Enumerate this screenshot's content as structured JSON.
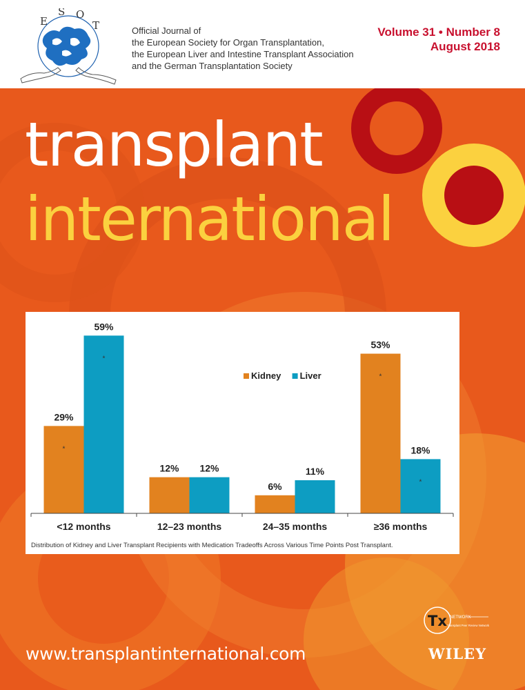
{
  "header": {
    "logo_text": "E S O T",
    "description_lines": [
      "Official Journal of",
      "the European Society for Organ Transplantation,",
      "the European Liver and Intestine Transplant Association",
      "and the German Transplantation Society"
    ],
    "volume_line": "Volume 31 • Number 8",
    "date_line": "August 2018"
  },
  "title": {
    "line1": "transplant",
    "line2": "international"
  },
  "chart_data": {
    "type": "bar",
    "categories": [
      "<12 months",
      "12–23 months",
      "24–35 months",
      "≥36 months"
    ],
    "series": [
      {
        "name": "Kidney",
        "values": [
          29,
          12,
          6,
          53
        ],
        "labels": [
          "29%",
          "12%",
          "6%",
          "53%"
        ],
        "color": "#e2821f"
      },
      {
        "name": "Liver",
        "values": [
          59,
          12,
          11,
          18
        ],
        "labels": [
          "59%",
          "12%",
          "11%",
          "18%"
        ],
        "color": "#0d9dc2"
      }
    ],
    "significance_marker": "*",
    "significant": [
      [
        true,
        false,
        false,
        true
      ],
      [
        true,
        false,
        false,
        true
      ]
    ],
    "ylim": [
      0,
      60
    ],
    "legend": "top-center",
    "caption": "Distribution of Kidney and Liver Transplant Recipients with Medication Tradeoffs Across Various Time Points Post Transplant."
  },
  "footer": {
    "url": "www.transplantinternational.com",
    "tx_logo_big": "Tx",
    "tx_logo_word": "NETWORK",
    "tx_logo_small": "Transplant Peer Review Network",
    "publisher": "WILEY"
  },
  "colors": {
    "background_orange": "#e8591c",
    "title_white": "#ffffff",
    "title_yellow": "#fbd13f",
    "issue_red": "#c8102e",
    "kidney": "#e2821f",
    "liver": "#0d9dc2"
  }
}
